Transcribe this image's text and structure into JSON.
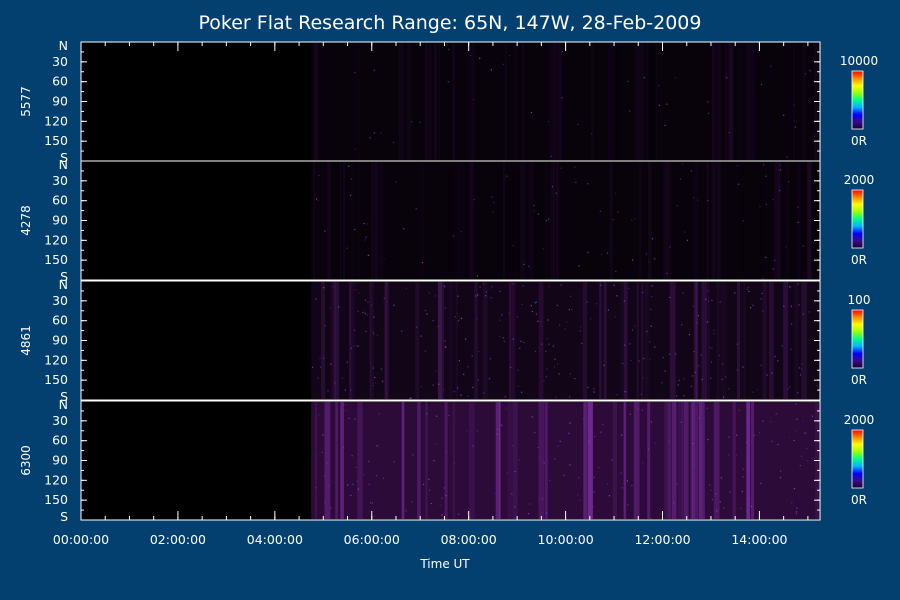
{
  "chart_data": {
    "type": "heatmap",
    "title": "Poker Flat Research Range: 65N, 147W, 28-Feb-2009",
    "xlabel": "Time UT",
    "x_ticks": [
      "00:00:00",
      "02:00:00",
      "04:00:00",
      "06:00:00",
      "08:00:00",
      "10:00:00",
      "12:00:00",
      "14:00:00"
    ],
    "x_range_hours": [
      0,
      15.25
    ],
    "data_start_hour": 4.75,
    "y_ticks": [
      "N",
      "30",
      "60",
      "90",
      "120",
      "150",
      "S"
    ],
    "y_range_deg": [
      0,
      180
    ],
    "panels": [
      {
        "label": "5577",
        "colorbar_max": "10000",
        "colorbar_min": "0R",
        "intensity_level": 0.12,
        "speckle_level": 0.05
      },
      {
        "label": "4278",
        "colorbar_max": "2000",
        "colorbar_min": "0R",
        "intensity_level": 0.12,
        "speckle_level": 0.1
      },
      {
        "label": "4861",
        "colorbar_max": "100",
        "colorbar_min": "0R",
        "intensity_level": 0.28,
        "speckle_level": 0.3
      },
      {
        "label": "6300",
        "colorbar_max": "2000",
        "colorbar_min": "0R",
        "intensity_level": 0.65,
        "speckle_level": 0.2
      }
    ],
    "colorscale": [
      "#1a0030",
      "#3a0a8a",
      "#0000ff",
      "#00b4ff",
      "#00ff8a",
      "#9aff00",
      "#ffff00",
      "#ff8a00",
      "#ff0000"
    ],
    "background_color": "#034070",
    "plot_background": "#000000",
    "data_tint": "#7a1f9e"
  }
}
